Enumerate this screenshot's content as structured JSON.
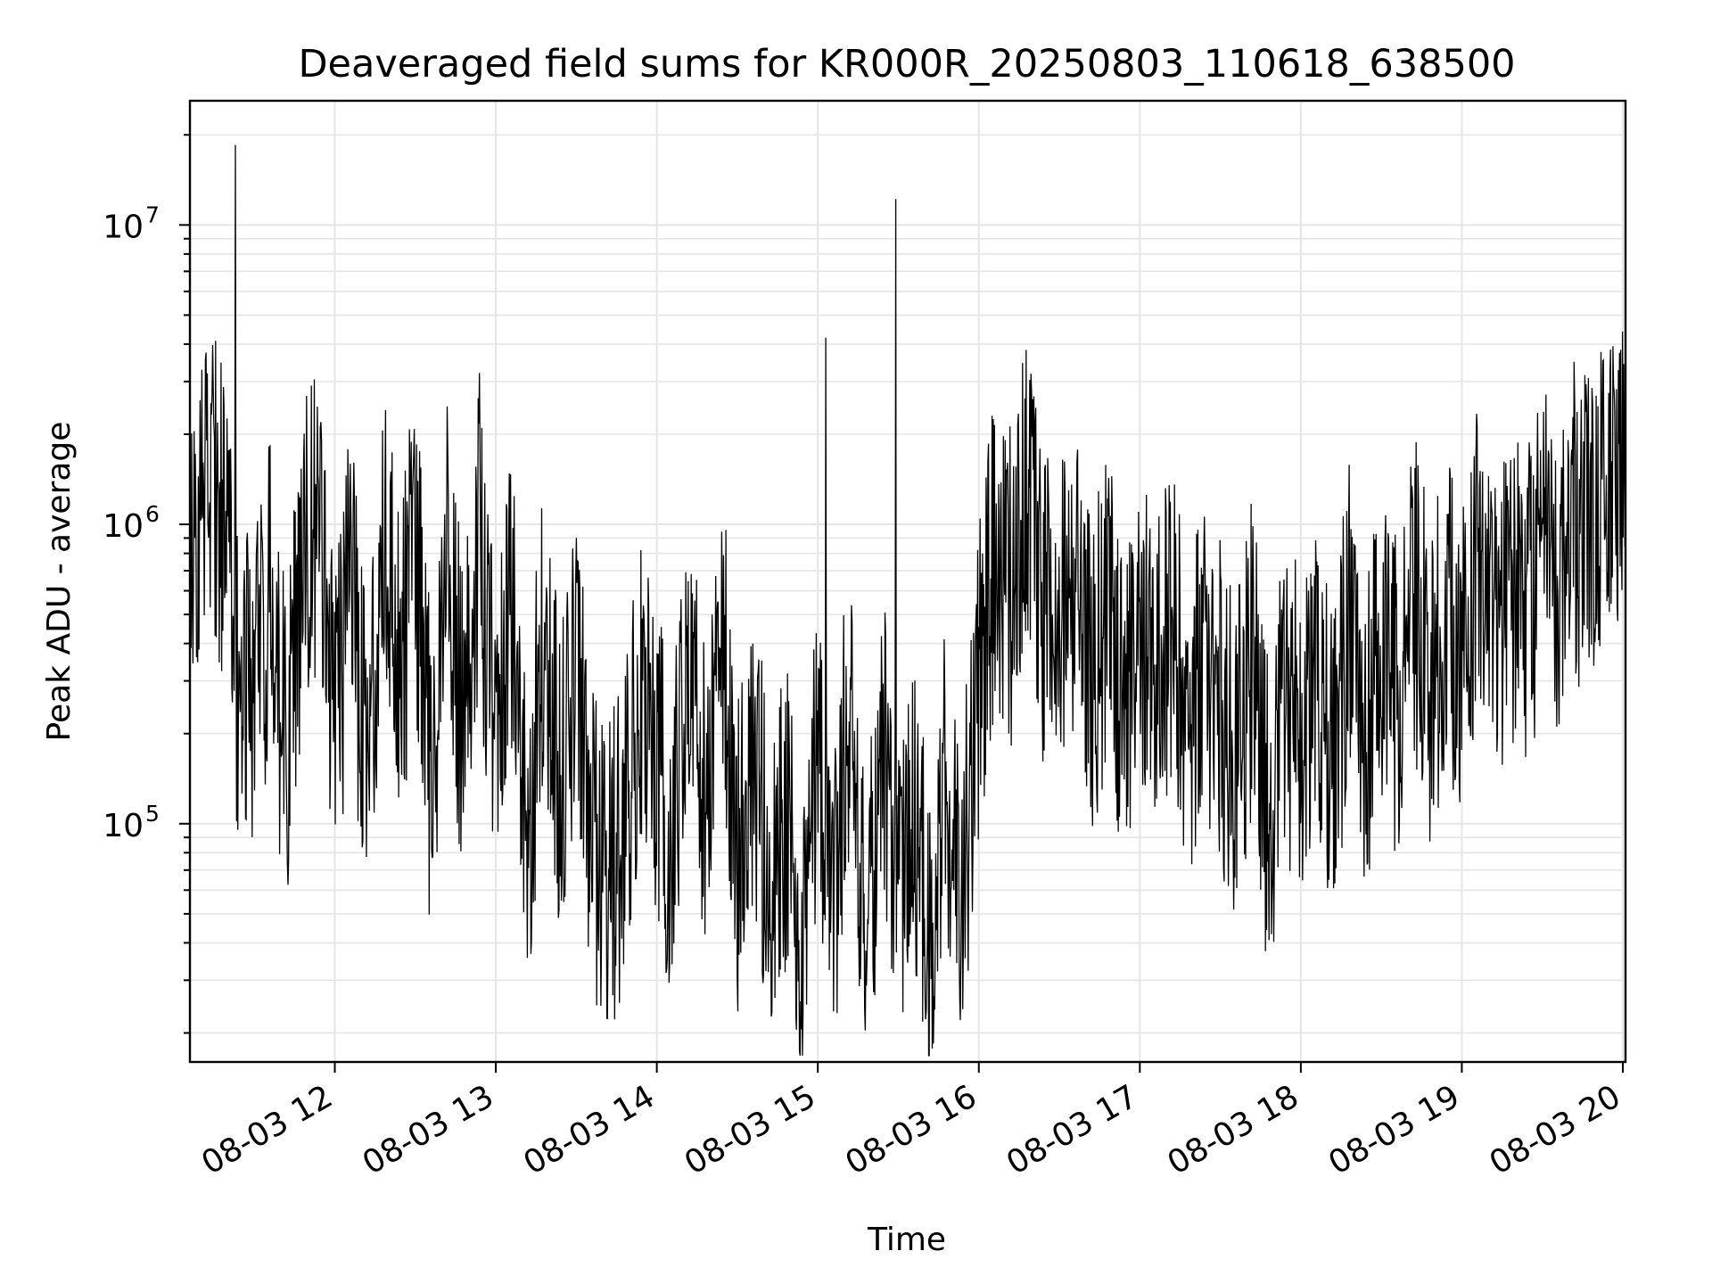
{
  "chart_data": {
    "type": "line",
    "title": "Deaveraged field sums for KR000R_20250803_110618_638500",
    "xlabel": "Time",
    "ylabel": "Peak ADU - average",
    "yscale": "log",
    "xlim": [
      "08-03 11:06",
      "08-03 20:01"
    ],
    "ylim": [
      16000,
      26000000
    ],
    "grid": true,
    "x_ticks": [
      "08-03 12",
      "08-03 13",
      "08-03 14",
      "08-03 15",
      "08-03 16",
      "08-03 17",
      "08-03 18",
      "08-03 19",
      "08-03 20"
    ],
    "y_ticks": [
      {
        "base": "10",
        "exp": "5",
        "value": 100000
      },
      {
        "base": "10",
        "exp": "6",
        "value": 1000000
      },
      {
        "base": "10",
        "exp": "7",
        "value": 10000000
      }
    ],
    "series": [
      {
        "color": "#000000",
        "x": [
          "08-03 11:06",
          "08-03 11:12",
          "08-03 11:18",
          "08-03 11:24",
          "08-03 11:30",
          "08-03 11:36",
          "08-03 11:42",
          "08-03 11:48",
          "08-03 11:54",
          "08-03 12:00",
          "08-03 12:06",
          "08-03 12:12",
          "08-03 12:18",
          "08-03 12:24",
          "08-03 12:30",
          "08-03 12:36",
          "08-03 12:42",
          "08-03 12:48",
          "08-03 12:54",
          "08-03 13:00",
          "08-03 13:06",
          "08-03 13:12",
          "08-03 13:18",
          "08-03 13:24",
          "08-03 13:30",
          "08-03 13:36",
          "08-03 13:42",
          "08-03 13:48",
          "08-03 13:54",
          "08-03 14:00",
          "08-03 14:06",
          "08-03 14:12",
          "08-03 14:18",
          "08-03 14:24",
          "08-03 14:30",
          "08-03 14:36",
          "08-03 14:42",
          "08-03 14:48",
          "08-03 14:54",
          "08-03 15:00",
          "08-03 15:06",
          "08-03 15:12",
          "08-03 15:18",
          "08-03 15:24",
          "08-03 15:30",
          "08-03 15:36",
          "08-03 15:42",
          "08-03 15:48",
          "08-03 15:54",
          "08-03 16:00",
          "08-03 16:06",
          "08-03 16:12",
          "08-03 16:18",
          "08-03 16:24",
          "08-03 16:30",
          "08-03 16:36",
          "08-03 16:42",
          "08-03 16:48",
          "08-03 16:54",
          "08-03 17:00",
          "08-03 17:06",
          "08-03 17:12",
          "08-03 17:18",
          "08-03 17:24",
          "08-03 17:30",
          "08-03 17:36",
          "08-03 17:42",
          "08-03 17:48",
          "08-03 17:54",
          "08-03 18:00",
          "08-03 18:06",
          "08-03 18:12",
          "08-03 18:18",
          "08-03 18:24",
          "08-03 18:30",
          "08-03 18:36",
          "08-03 18:42",
          "08-03 18:48",
          "08-03 18:54",
          "08-03 19:00",
          "08-03 19:06",
          "08-03 19:12",
          "08-03 19:18",
          "08-03 19:24",
          "08-03 19:30",
          "08-03 19:36",
          "08-03 19:42",
          "08-03 19:48",
          "08-03 19:54",
          "08-03 20:00"
        ],
        "y": [
          900000,
          1300000,
          1100000,
          300000,
          250000,
          600000,
          150000,
          800000,
          900000,
          200000,
          700000,
          150000,
          1000000,
          300000,
          900000,
          120000,
          800000,
          200000,
          1000000,
          150000,
          600000,
          100000,
          400000,
          120000,
          300000,
          80000,
          60000,
          100000,
          250000,
          150000,
          90000,
          400000,
          120000,
          600000,
          80000,
          200000,
          60000,
          100000,
          50000,
          150000,
          60000,
          250000,
          40000,
          180000,
          50000,
          100000,
          35000,
          150000,
          60000,
          300000,
          800000,
          600000,
          1200000,
          500000,
          450000,
          700000,
          300000,
          500000,
          250000,
          400000,
          300000,
          500000,
          200000,
          350000,
          250000,
          150000,
          400000,
          100000,
          250000,
          200000,
          300000,
          150000,
          500000,
          200000,
          400000,
          250000,
          600000,
          300000,
          500000,
          350000,
          700000,
          400000,
          600000,
          500000,
          800000,
          700000,
          1000000,
          900000,
          1200000,
          1400000
        ],
        "spikes": [
          {
            "x": "08-03 11:23",
            "y": 18500000
          },
          {
            "x": "08-03 15:03",
            "y": 4200000
          },
          {
            "x": "08-03 15:29",
            "y": 12200000
          }
        ]
      }
    ]
  }
}
